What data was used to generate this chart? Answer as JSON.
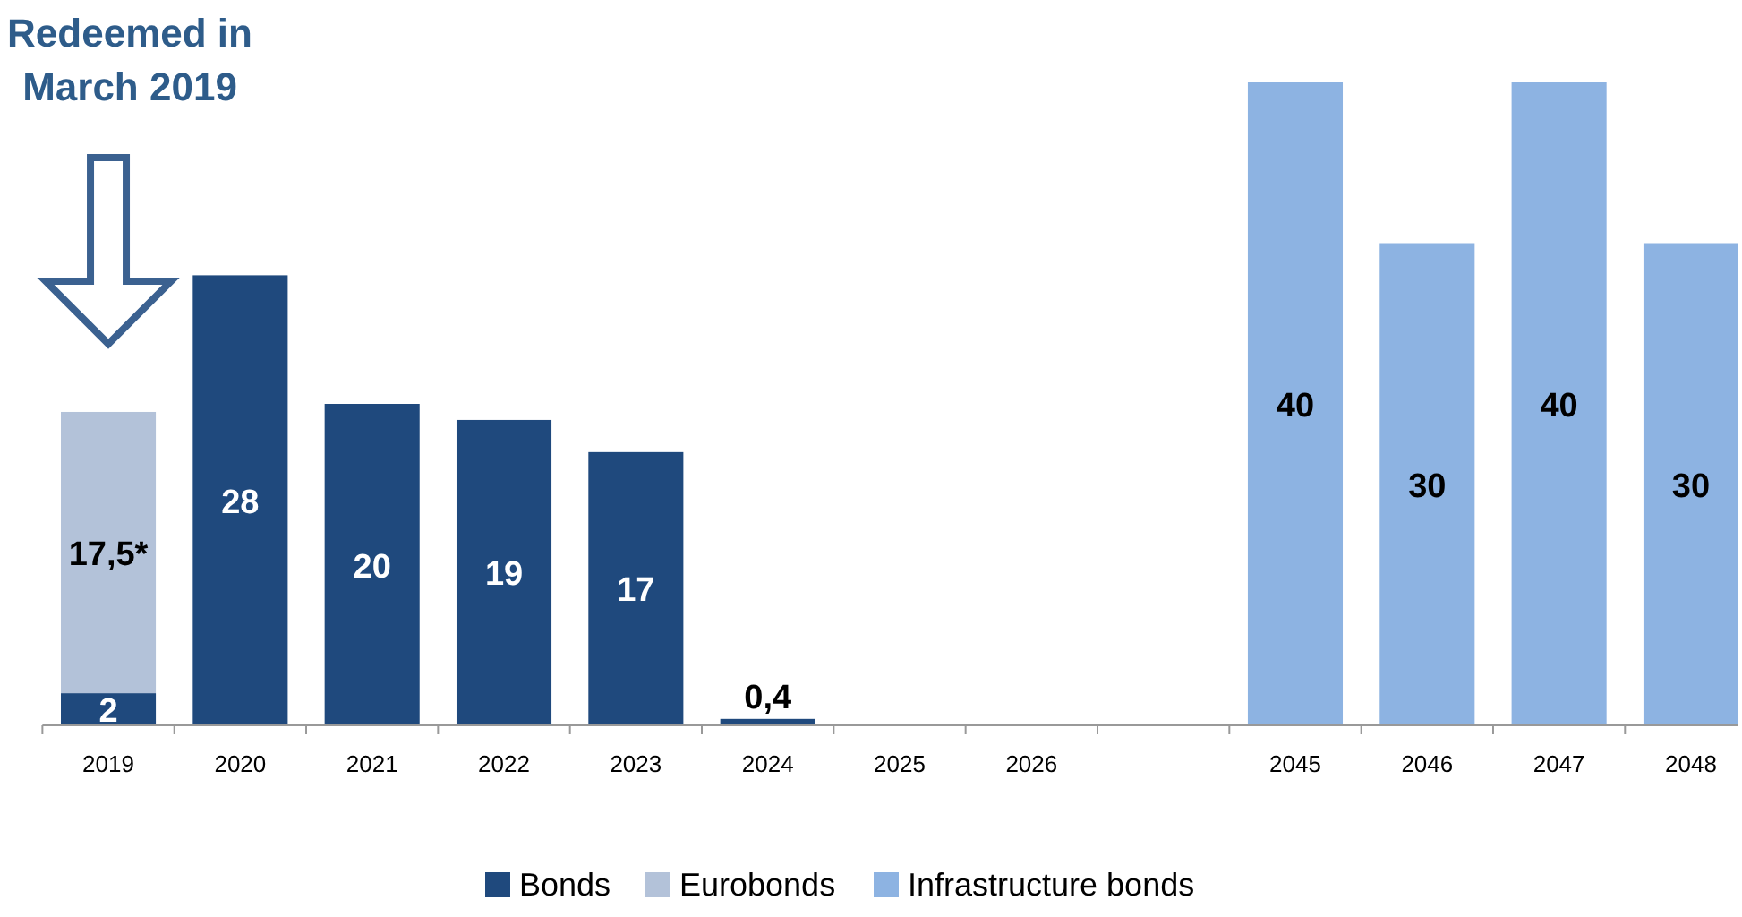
{
  "chart_data": {
    "type": "bar",
    "stacked": true,
    "categories": [
      "2019",
      "2020",
      "2021",
      "2022",
      "2023",
      "2024",
      "2025",
      "2026",
      null,
      "2045",
      "2046",
      "2047",
      "2048"
    ],
    "series": [
      {
        "name": "Bonds",
        "color": "#1f497d",
        "values": [
          2,
          28,
          20,
          19,
          17,
          0.4,
          null,
          null,
          null,
          null,
          null,
          null,
          null
        ],
        "value_labels": [
          "2",
          "28",
          "20",
          "19",
          "17",
          "0,4",
          null,
          null,
          null,
          null,
          null,
          null,
          null
        ]
      },
      {
        "name": "Eurobonds",
        "color": "#b3c2d9",
        "values": [
          17.5,
          null,
          null,
          null,
          null,
          null,
          null,
          null,
          null,
          null,
          null,
          null,
          null
        ],
        "value_labels": [
          "17,5*",
          null,
          null,
          null,
          null,
          null,
          null,
          null,
          null,
          null,
          null,
          null,
          null
        ]
      },
      {
        "name": "Infrastructure bonds",
        "color": "#8db3e2",
        "values": [
          null,
          null,
          null,
          null,
          null,
          null,
          null,
          null,
          null,
          40,
          30,
          40,
          30
        ],
        "value_labels": [
          null,
          null,
          null,
          null,
          null,
          null,
          null,
          null,
          null,
          "40",
          "30",
          "40",
          "30"
        ]
      }
    ],
    "annotations": [
      "Redeemed in March 2019"
    ],
    "legend": "bottom",
    "grid": false
  }
}
